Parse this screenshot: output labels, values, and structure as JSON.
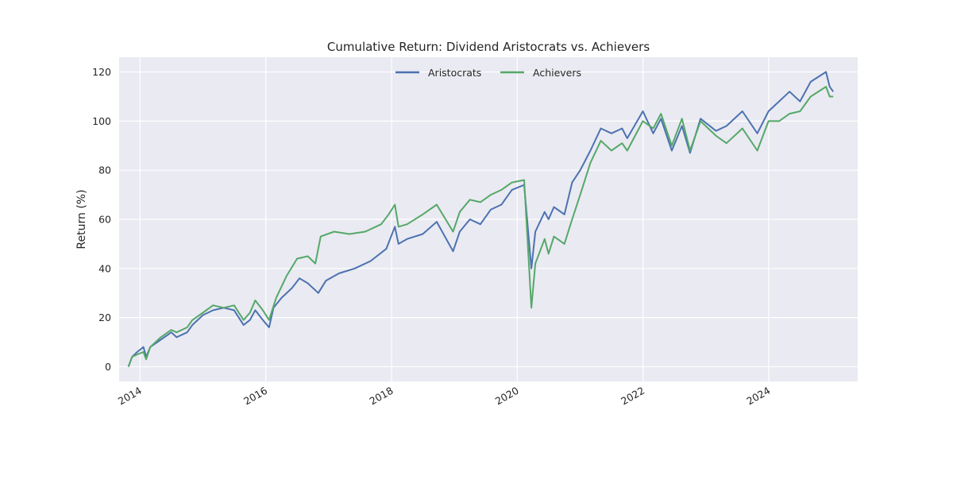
{
  "chart_data": {
    "type": "line",
    "title": "Cumulative Return: Dividend Aristocrats vs. Achievers",
    "xlabel": "",
    "ylabel": "Return (%)",
    "xlim": [
      "2013-09-01",
      "2025-06-01"
    ],
    "ylim": [
      -6,
      126
    ],
    "x_ticks": [
      {
        "date": "2014-01-01",
        "label": "2014"
      },
      {
        "date": "2016-01-01",
        "label": "2016"
      },
      {
        "date": "2018-01-01",
        "label": "2018"
      },
      {
        "date": "2020-01-01",
        "label": "2020"
      },
      {
        "date": "2022-01-01",
        "label": "2022"
      },
      {
        "date": "2024-01-01",
        "label": "2024"
      }
    ],
    "y_ticks": [
      {
        "value": 0,
        "label": "0"
      },
      {
        "value": 20,
        "label": "20"
      },
      {
        "value": 40,
        "label": "40"
      },
      {
        "value": 60,
        "label": "60"
      },
      {
        "value": 80,
        "label": "80"
      },
      {
        "value": 100,
        "label": "100"
      },
      {
        "value": 120,
        "label": "120"
      }
    ],
    "grid": true,
    "legend": "upper-center",
    "colors": {
      "background": "#EAEAF2",
      "grid": "#FFFFFF",
      "aristocrats": "#4C72B0",
      "achievers": "#55A868"
    },
    "series": [
      {
        "name": "Aristocrats",
        "color": "#4C72B0",
        "points": [
          [
            "2013-10-25",
            0
          ],
          [
            "2013-11-15",
            4
          ],
          [
            "2013-12-15",
            6
          ],
          [
            "2014-01-20",
            8
          ],
          [
            "2014-02-05",
            4
          ],
          [
            "2014-03-01",
            8
          ],
          [
            "2014-05-01",
            11
          ],
          [
            "2014-07-01",
            14
          ],
          [
            "2014-08-01",
            12
          ],
          [
            "2014-10-01",
            14
          ],
          [
            "2014-11-01",
            17
          ],
          [
            "2015-01-01",
            21
          ],
          [
            "2015-03-01",
            23
          ],
          [
            "2015-05-01",
            24
          ],
          [
            "2015-07-01",
            23
          ],
          [
            "2015-08-25",
            17
          ],
          [
            "2015-10-01",
            19
          ],
          [
            "2015-11-01",
            23
          ],
          [
            "2015-12-15",
            19
          ],
          [
            "2016-01-20",
            16
          ],
          [
            "2016-02-15",
            24
          ],
          [
            "2016-04-01",
            28
          ],
          [
            "2016-06-01",
            32
          ],
          [
            "2016-07-15",
            36
          ],
          [
            "2016-09-01",
            34
          ],
          [
            "2016-11-01",
            30
          ],
          [
            "2016-12-15",
            35
          ],
          [
            "2017-03-01",
            38
          ],
          [
            "2017-06-01",
            40
          ],
          [
            "2017-09-01",
            43
          ],
          [
            "2017-12-01",
            48
          ],
          [
            "2018-01-20",
            57
          ],
          [
            "2018-02-10",
            50
          ],
          [
            "2018-04-01",
            52
          ],
          [
            "2018-07-01",
            54
          ],
          [
            "2018-09-20",
            59
          ],
          [
            "2018-12-24",
            47
          ],
          [
            "2019-02-01",
            55
          ],
          [
            "2019-04-01",
            60
          ],
          [
            "2019-06-01",
            58
          ],
          [
            "2019-08-01",
            64
          ],
          [
            "2019-10-01",
            66
          ],
          [
            "2019-12-01",
            72
          ],
          [
            "2020-02-10",
            74
          ],
          [
            "2020-03-23",
            40
          ],
          [
            "2020-04-15",
            55
          ],
          [
            "2020-06-08",
            63
          ],
          [
            "2020-07-01",
            60
          ],
          [
            "2020-08-01",
            65
          ],
          [
            "2020-10-01",
            62
          ],
          [
            "2020-11-15",
            75
          ],
          [
            "2021-01-01",
            80
          ],
          [
            "2021-03-01",
            88
          ],
          [
            "2021-05-01",
            97
          ],
          [
            "2021-07-01",
            95
          ],
          [
            "2021-09-01",
            97
          ],
          [
            "2021-10-01",
            93
          ],
          [
            "2021-12-31",
            104
          ],
          [
            "2022-03-01",
            95
          ],
          [
            "2022-04-15",
            101
          ],
          [
            "2022-06-17",
            88
          ],
          [
            "2022-08-15",
            98
          ],
          [
            "2022-10-01",
            87
          ],
          [
            "2022-12-01",
            101
          ],
          [
            "2023-03-01",
            96
          ],
          [
            "2023-05-01",
            98
          ],
          [
            "2023-08-01",
            104
          ],
          [
            "2023-10-27",
            95
          ],
          [
            "2023-12-31",
            104
          ],
          [
            "2024-03-01",
            108
          ],
          [
            "2024-05-01",
            112
          ],
          [
            "2024-07-01",
            108
          ],
          [
            "2024-09-01",
            116
          ],
          [
            "2024-11-29",
            120
          ],
          [
            "2024-12-20",
            114
          ],
          [
            "2025-01-10",
            112
          ]
        ]
      },
      {
        "name": "Achievers",
        "color": "#55A868",
        "points": [
          [
            "2013-10-25",
            0
          ],
          [
            "2013-11-15",
            4
          ],
          [
            "2013-12-15",
            5
          ],
          [
            "2014-01-20",
            6
          ],
          [
            "2014-02-05",
            3
          ],
          [
            "2014-03-01",
            8
          ],
          [
            "2014-05-01",
            12
          ],
          [
            "2014-07-01",
            15
          ],
          [
            "2014-08-01",
            14
          ],
          [
            "2014-10-01",
            16
          ],
          [
            "2014-11-01",
            19
          ],
          [
            "2015-01-01",
            22
          ],
          [
            "2015-03-01",
            25
          ],
          [
            "2015-05-01",
            24
          ],
          [
            "2015-07-01",
            25
          ],
          [
            "2015-08-25",
            19
          ],
          [
            "2015-10-01",
            22
          ],
          [
            "2015-11-01",
            27
          ],
          [
            "2015-12-15",
            23
          ],
          [
            "2016-01-20",
            19
          ],
          [
            "2016-03-01",
            28
          ],
          [
            "2016-05-01",
            37
          ],
          [
            "2016-07-01",
            44
          ],
          [
            "2016-09-01",
            45
          ],
          [
            "2016-10-15",
            42
          ],
          [
            "2016-11-15",
            53
          ],
          [
            "2017-02-01",
            55
          ],
          [
            "2017-05-01",
            54
          ],
          [
            "2017-08-01",
            55
          ],
          [
            "2017-11-01",
            58
          ],
          [
            "2017-12-15",
            62
          ],
          [
            "2018-01-20",
            66
          ],
          [
            "2018-02-10",
            57
          ],
          [
            "2018-04-01",
            58
          ],
          [
            "2018-07-01",
            62
          ],
          [
            "2018-09-20",
            66
          ],
          [
            "2018-12-24",
            55
          ],
          [
            "2019-02-01",
            63
          ],
          [
            "2019-04-01",
            68
          ],
          [
            "2019-06-01",
            67
          ],
          [
            "2019-08-01",
            70
          ],
          [
            "2019-10-01",
            72
          ],
          [
            "2019-12-01",
            75
          ],
          [
            "2020-02-10",
            76
          ],
          [
            "2020-03-23",
            24
          ],
          [
            "2020-04-15",
            42
          ],
          [
            "2020-06-08",
            52
          ],
          [
            "2020-07-01",
            46
          ],
          [
            "2020-08-01",
            53
          ],
          [
            "2020-10-01",
            50
          ],
          [
            "2020-11-15",
            60
          ],
          [
            "2021-01-01",
            70
          ],
          [
            "2021-03-01",
            83
          ],
          [
            "2021-05-01",
            92
          ],
          [
            "2021-07-01",
            88
          ],
          [
            "2021-09-01",
            91
          ],
          [
            "2021-10-01",
            88
          ],
          [
            "2021-12-31",
            100
          ],
          [
            "2022-03-01",
            97
          ],
          [
            "2022-04-15",
            103
          ],
          [
            "2022-06-17",
            90
          ],
          [
            "2022-08-15",
            101
          ],
          [
            "2022-10-01",
            88
          ],
          [
            "2022-12-01",
            100
          ],
          [
            "2023-03-01",
            94
          ],
          [
            "2023-05-01",
            91
          ],
          [
            "2023-08-01",
            97
          ],
          [
            "2023-10-27",
            88
          ],
          [
            "2023-12-31",
            100
          ],
          [
            "2024-03-01",
            100
          ],
          [
            "2024-05-01",
            103
          ],
          [
            "2024-07-01",
            104
          ],
          [
            "2024-09-01",
            110
          ],
          [
            "2024-11-29",
            114
          ],
          [
            "2024-12-20",
            110
          ],
          [
            "2025-01-10",
            110
          ]
        ]
      }
    ]
  }
}
